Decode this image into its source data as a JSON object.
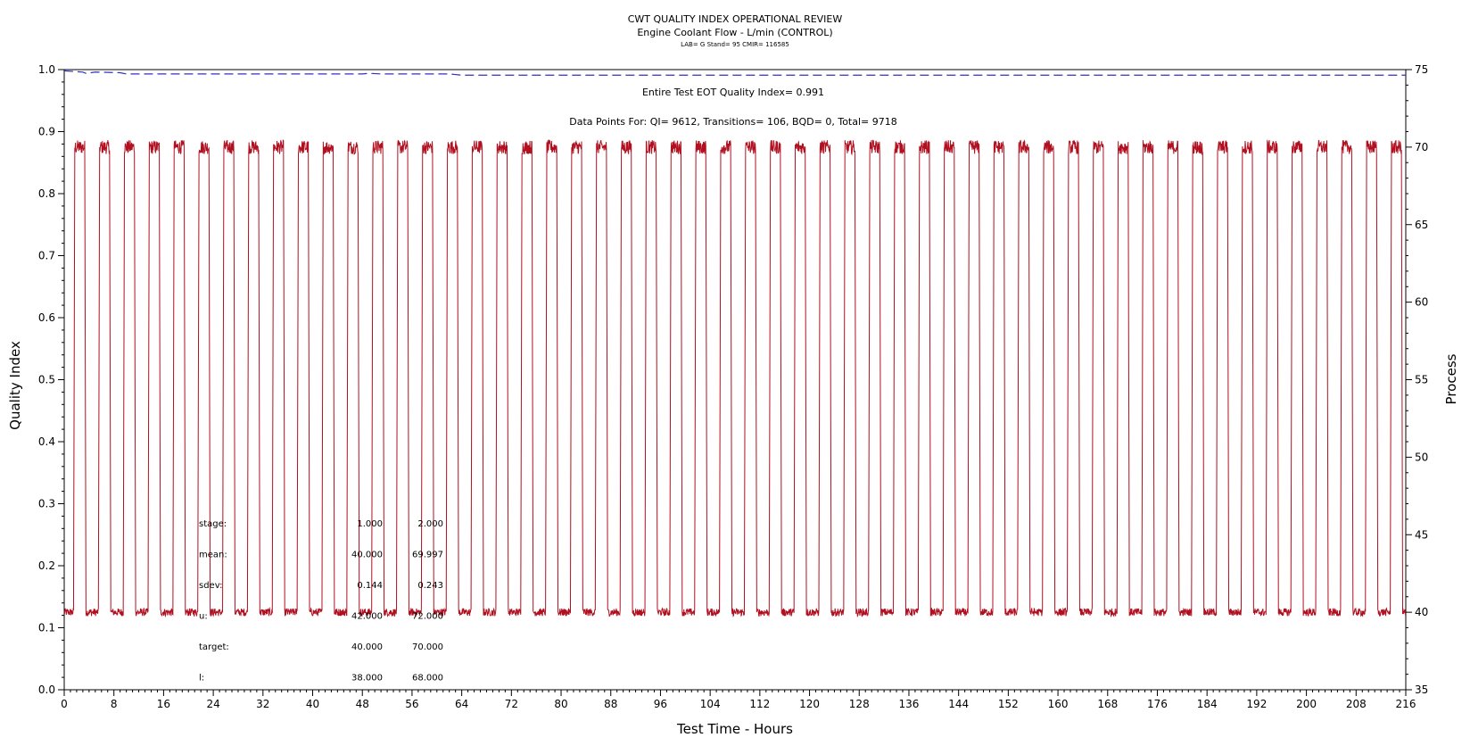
{
  "chart_data": {
    "type": "line",
    "title": "CWT QUALITY INDEX OPERATIONAL REVIEW",
    "subtitle": "Engine Coolant Flow - L/min (CONTROL)",
    "subsubtitle": "LAB= G Stand= 95 CMIR= 116585",
    "xlabel": "Test Time - Hours",
    "ylabel_left": "Quality Index",
    "ylabel_right": "Process",
    "xlim": [
      0,
      216
    ],
    "ylim_left": [
      0.0,
      1.0
    ],
    "ylim_right": [
      35,
      75
    ],
    "x_ticks": [
      "0",
      "8",
      "16",
      "24",
      "32",
      "40",
      "48",
      "56",
      "64",
      "72",
      "80",
      "88",
      "96",
      "104",
      "112",
      "120",
      "128",
      "136",
      "144",
      "152",
      "160",
      "168",
      "176",
      "184",
      "192",
      "200",
      "208",
      "216"
    ],
    "y_left_ticks": [
      "0.0",
      "0.1",
      "0.2",
      "0.3",
      "0.4",
      "0.5",
      "0.6",
      "0.7",
      "0.8",
      "0.9",
      "1.0"
    ],
    "y_right_ticks": [
      "35",
      "40",
      "45",
      "50",
      "55",
      "60",
      "65",
      "70",
      "75"
    ],
    "annotations": {
      "eot": "Entire Test EOT Quality Index=   0.991",
      "points": "Data Points For: QI=   9612, Transitions=    106, BQD=      0, Total=   9718"
    },
    "stats_table": {
      "rows": [
        {
          "label": "stage:",
          "v1": "1.000",
          "v2": "2.000"
        },
        {
          "label": "mean:",
          "v1": "40.000",
          "v2": "69.997"
        },
        {
          "label": "sdev:",
          "v1": "0.144",
          "v2": "0.243"
        },
        {
          "label": "u:",
          "v1": "42.000",
          "v2": "72.000"
        },
        {
          "label": "target:",
          "v1": "40.000",
          "v2": "70.000"
        },
        {
          "label": "l:",
          "v1": "38.000",
          "v2": "68.000"
        }
      ]
    },
    "series": [
      {
        "role": "quality_index",
        "axis": "left",
        "color": "#3030c0",
        "style": "dashed",
        "points": [
          [
            0.0,
            0.998
          ],
          [
            3.0,
            0.996
          ],
          [
            3.5,
            0.994
          ],
          [
            5.0,
            0.996
          ],
          [
            9.0,
            0.995
          ],
          [
            10.0,
            0.993
          ],
          [
            48.0,
            0.993
          ],
          [
            49.0,
            0.994
          ],
          [
            51.0,
            0.993
          ],
          [
            62.0,
            0.993
          ],
          [
            64.0,
            0.991
          ],
          [
            216.0,
            0.991
          ]
        ]
      },
      {
        "role": "process",
        "axis": "right",
        "color": "#b01020",
        "style": "solid",
        "pattern": {
          "cycles": 54,
          "cycle_hours": 4.0,
          "start_hour": 0.5,
          "low_value": 40.0,
          "high_value": 70.0,
          "low_hours": 2.0,
          "high_hours": 1.6,
          "noise_low": 0.25,
          "noise_high": 0.45
        }
      }
    ]
  }
}
